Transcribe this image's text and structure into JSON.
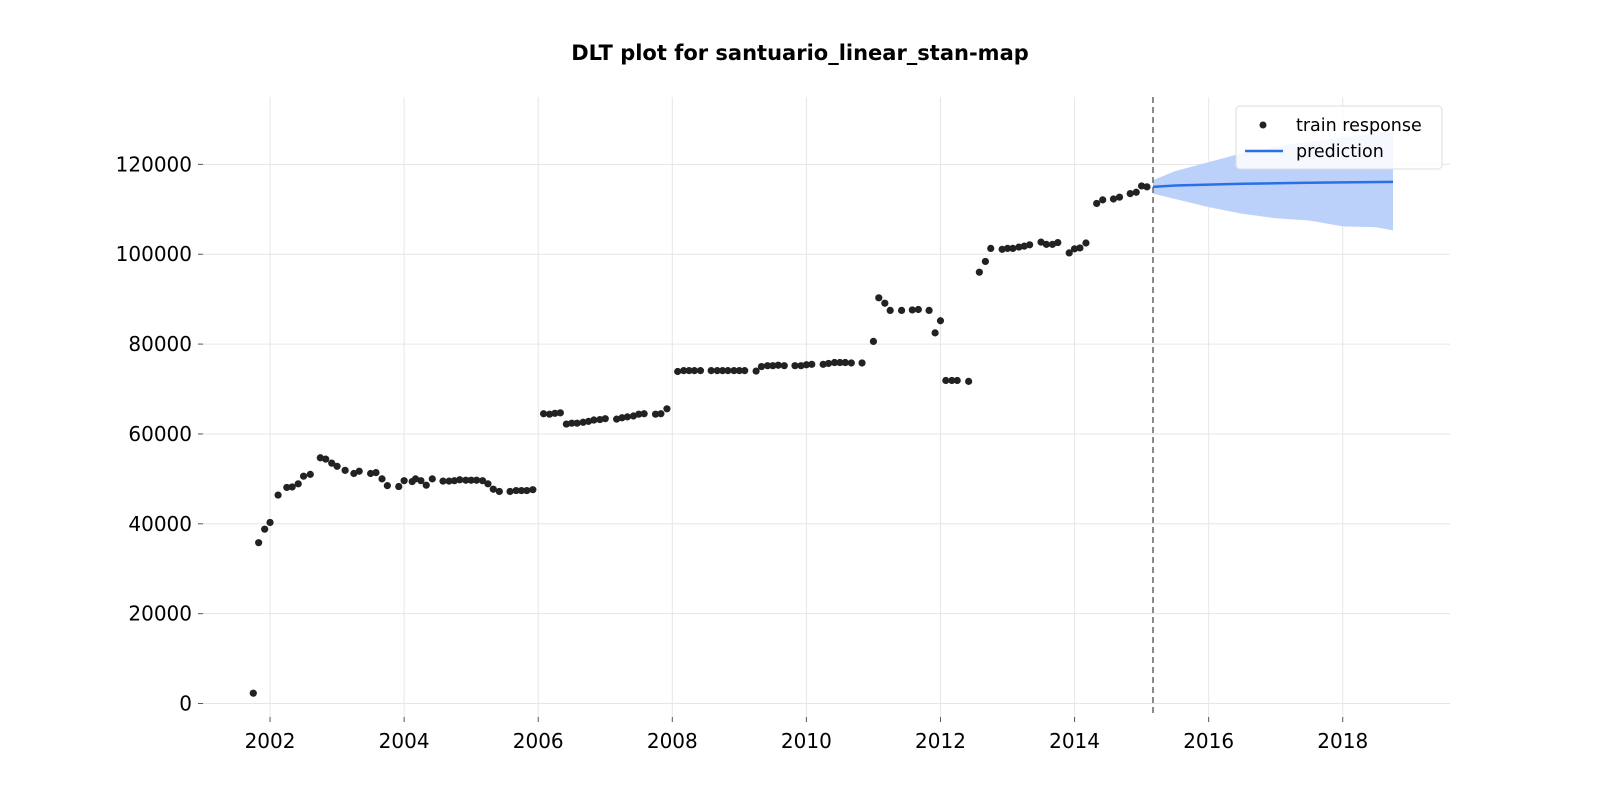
{
  "chart_data": {
    "type": "scatter",
    "title": "DLT plot for santuario_linear_stan-map",
    "xlabel": "",
    "ylabel": "",
    "xlim": [
      2001.0,
      2019.6
    ],
    "ylim": [
      -3000,
      135000
    ],
    "x_ticks": [
      2002,
      2004,
      2006,
      2008,
      2010,
      2012,
      2014,
      2016,
      2018
    ],
    "y_ticks": [
      0,
      20000,
      40000,
      60000,
      80000,
      100000,
      120000
    ],
    "grid": true,
    "legend_position": "top-right",
    "split_x": 2015.17,
    "colors": {
      "train": "#222222",
      "prediction": "#2a6fe8",
      "band": "#bcd1fa",
      "split_line": "#666666"
    },
    "legend": [
      "train response",
      "prediction"
    ],
    "series": [
      {
        "name": "train response",
        "kind": "scatter",
        "points": [
          [
            2001.75,
            2300
          ],
          [
            2001.83,
            35800
          ],
          [
            2001.92,
            38800
          ],
          [
            2002.0,
            40300
          ],
          [
            2002.12,
            46400
          ],
          [
            2002.25,
            48100
          ],
          [
            2002.33,
            48200
          ],
          [
            2002.42,
            48900
          ],
          [
            2002.5,
            50600
          ],
          [
            2002.6,
            51000
          ],
          [
            2002.75,
            54700
          ],
          [
            2002.83,
            54400
          ],
          [
            2002.92,
            53500
          ],
          [
            2003.0,
            52800
          ],
          [
            2003.12,
            51900
          ],
          [
            2003.25,
            51200
          ],
          [
            2003.33,
            51700
          ],
          [
            2003.5,
            51200
          ],
          [
            2003.58,
            51400
          ],
          [
            2003.67,
            50000
          ],
          [
            2003.75,
            48500
          ],
          [
            2003.92,
            48300
          ],
          [
            2004.0,
            49600
          ],
          [
            2004.12,
            49400
          ],
          [
            2004.17,
            50000
          ],
          [
            2004.25,
            49600
          ],
          [
            2004.33,
            48600
          ],
          [
            2004.42,
            50000
          ],
          [
            2004.58,
            49500
          ],
          [
            2004.67,
            49500
          ],
          [
            2004.75,
            49600
          ],
          [
            2004.83,
            49800
          ],
          [
            2004.92,
            49700
          ],
          [
            2005.0,
            49700
          ],
          [
            2005.08,
            49700
          ],
          [
            2005.17,
            49600
          ],
          [
            2005.25,
            48900
          ],
          [
            2005.33,
            47700
          ],
          [
            2005.42,
            47200
          ],
          [
            2005.58,
            47200
          ],
          [
            2005.67,
            47400
          ],
          [
            2005.75,
            47400
          ],
          [
            2005.83,
            47400
          ],
          [
            2005.92,
            47600
          ],
          [
            2006.08,
            64500
          ],
          [
            2006.17,
            64400
          ],
          [
            2006.25,
            64600
          ],
          [
            2006.33,
            64700
          ],
          [
            2006.42,
            62200
          ],
          [
            2006.5,
            62400
          ],
          [
            2006.58,
            62400
          ],
          [
            2006.67,
            62600
          ],
          [
            2006.75,
            62800
          ],
          [
            2006.83,
            63100
          ],
          [
            2006.92,
            63200
          ],
          [
            2007.0,
            63400
          ],
          [
            2007.17,
            63300
          ],
          [
            2007.25,
            63600
          ],
          [
            2007.33,
            63800
          ],
          [
            2007.42,
            64000
          ],
          [
            2007.5,
            64400
          ],
          [
            2007.58,
            64500
          ],
          [
            2007.75,
            64400
          ],
          [
            2007.83,
            64500
          ],
          [
            2007.92,
            65600
          ],
          [
            2008.08,
            73900
          ],
          [
            2008.17,
            74100
          ],
          [
            2008.25,
            74100
          ],
          [
            2008.33,
            74100
          ],
          [
            2008.42,
            74100
          ],
          [
            2008.58,
            74100
          ],
          [
            2008.67,
            74100
          ],
          [
            2008.75,
            74100
          ],
          [
            2008.83,
            74100
          ],
          [
            2008.92,
            74100
          ],
          [
            2009.0,
            74100
          ],
          [
            2009.08,
            74100
          ],
          [
            2009.25,
            74000
          ],
          [
            2009.33,
            75000
          ],
          [
            2009.42,
            75200
          ],
          [
            2009.5,
            75200
          ],
          [
            2009.58,
            75300
          ],
          [
            2009.67,
            75200
          ],
          [
            2009.83,
            75200
          ],
          [
            2009.92,
            75200
          ],
          [
            2010.0,
            75400
          ],
          [
            2010.08,
            75500
          ],
          [
            2010.25,
            75500
          ],
          [
            2010.33,
            75700
          ],
          [
            2010.42,
            75900
          ],
          [
            2010.5,
            75900
          ],
          [
            2010.58,
            75900
          ],
          [
            2010.67,
            75800
          ],
          [
            2010.83,
            75800
          ],
          [
            2011.0,
            80600
          ],
          [
            2011.08,
            90300
          ],
          [
            2011.17,
            89100
          ],
          [
            2011.25,
            87500
          ],
          [
            2011.42,
            87500
          ],
          [
            2011.58,
            87600
          ],
          [
            2011.67,
            87700
          ],
          [
            2011.83,
            87500
          ],
          [
            2011.92,
            82500
          ],
          [
            2012.0,
            85200
          ],
          [
            2012.08,
            71900
          ],
          [
            2012.17,
            71900
          ],
          [
            2012.25,
            71900
          ],
          [
            2012.42,
            71700
          ],
          [
            2012.58,
            96000
          ],
          [
            2012.67,
            98400
          ],
          [
            2012.75,
            101300
          ],
          [
            2012.92,
            101100
          ],
          [
            2013.0,
            101300
          ],
          [
            2013.08,
            101300
          ],
          [
            2013.17,
            101600
          ],
          [
            2013.25,
            101800
          ],
          [
            2013.33,
            102100
          ],
          [
            2013.5,
            102700
          ],
          [
            2013.58,
            102200
          ],
          [
            2013.67,
            102200
          ],
          [
            2013.75,
            102600
          ],
          [
            2013.92,
            100300
          ],
          [
            2014.0,
            101200
          ],
          [
            2014.08,
            101400
          ],
          [
            2014.17,
            102500
          ],
          [
            2014.33,
            111300
          ],
          [
            2014.42,
            112100
          ],
          [
            2014.58,
            112300
          ],
          [
            2014.67,
            112700
          ],
          [
            2014.83,
            113500
          ],
          [
            2014.92,
            113800
          ],
          [
            2015.0,
            115200
          ],
          [
            2015.08,
            115000
          ]
        ]
      },
      {
        "name": "prediction",
        "kind": "line",
        "points": [
          [
            2015.17,
            115000
          ],
          [
            2015.5,
            115300
          ],
          [
            2016.0,
            115500
          ],
          [
            2016.5,
            115700
          ],
          [
            2017.0,
            115800
          ],
          [
            2017.5,
            115900
          ],
          [
            2018.0,
            116000
          ],
          [
            2018.75,
            116100
          ]
        ],
        "band": {
          "x": [
            2015.17,
            2015.5,
            2016.0,
            2016.5,
            2017.0,
            2017.5,
            2018.0,
            2018.5,
            2018.75
          ],
          "upper": [
            116500,
            118500,
            120500,
            122500,
            124000,
            125000,
            126000,
            127000,
            127500
          ],
          "lower": [
            113500,
            112300,
            110500,
            109000,
            108000,
            107500,
            106200,
            106000,
            105300
          ]
        }
      }
    ]
  }
}
